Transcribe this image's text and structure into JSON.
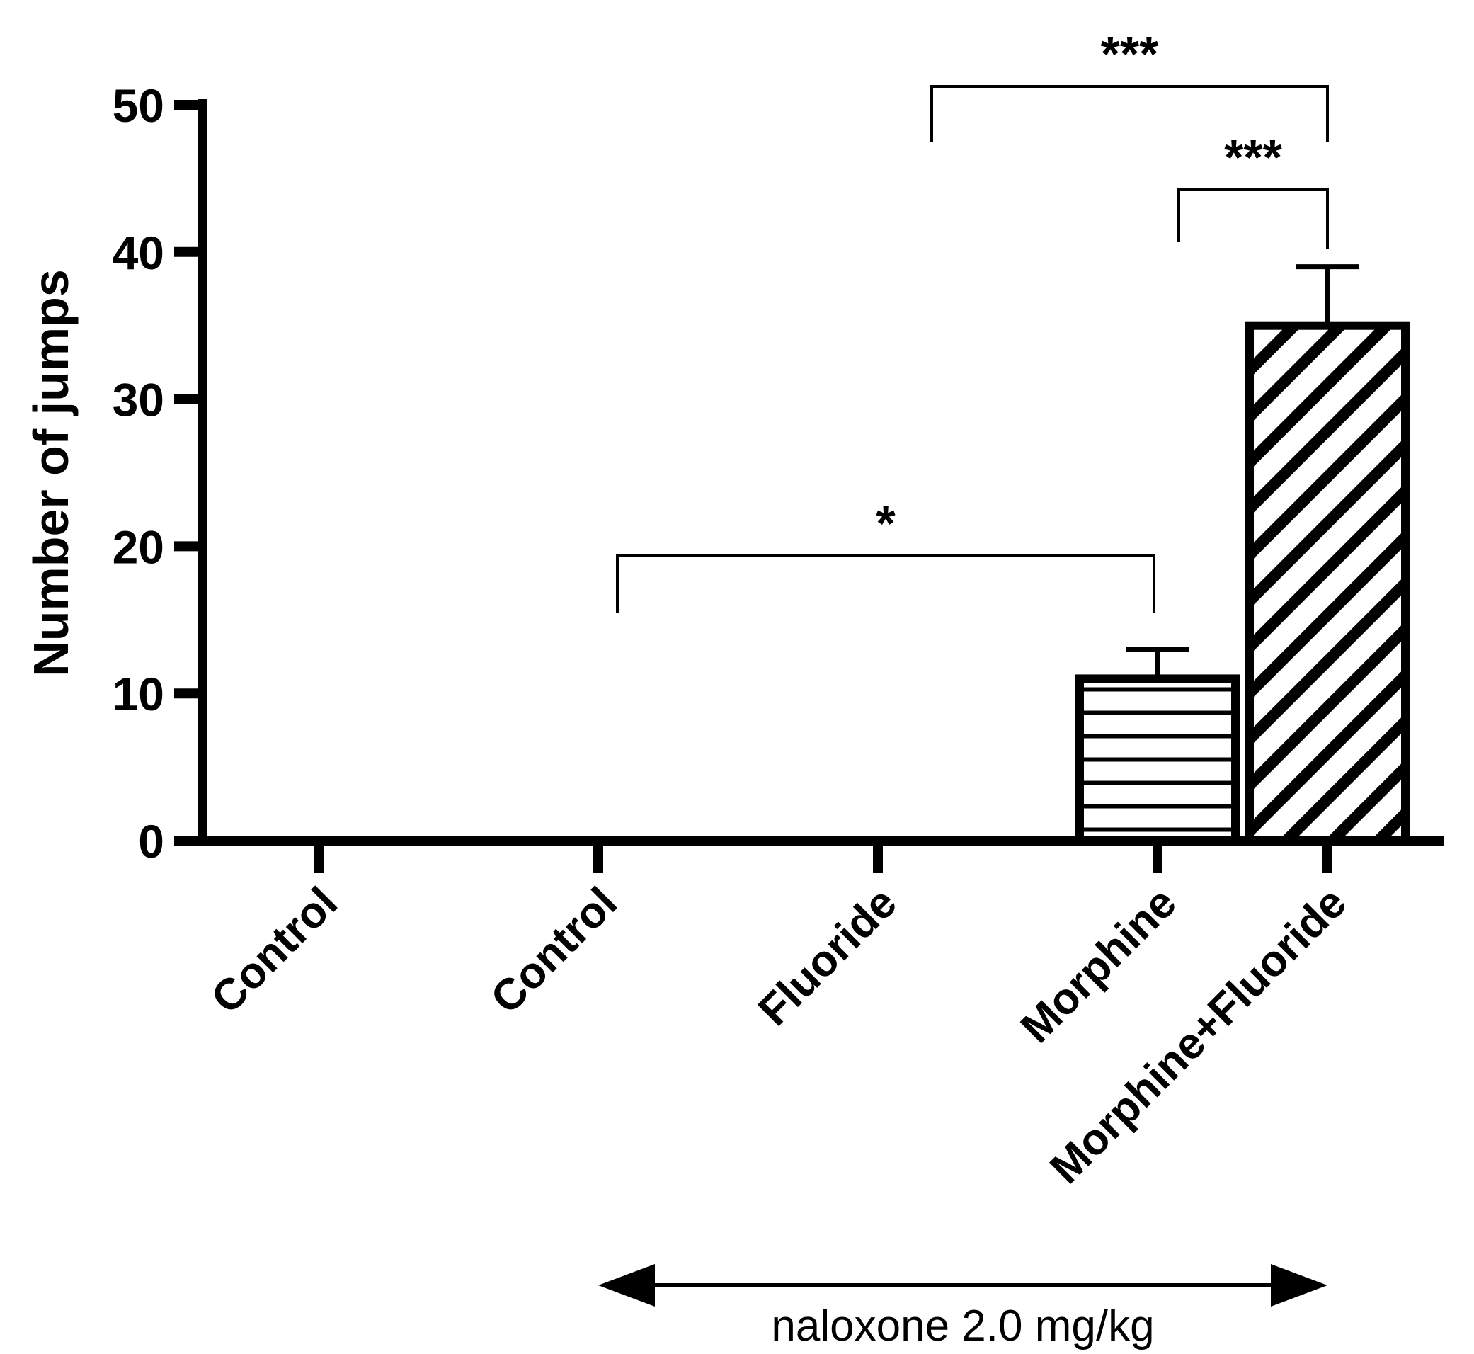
{
  "chart_data": {
    "type": "bar",
    "categories": [
      "Control",
      "Control",
      "Fluoride",
      "Morphine",
      "Morphine+Fluoride"
    ],
    "values": [
      0,
      0,
      0,
      11,
      35
    ],
    "errors": [
      0,
      0,
      0,
      2,
      4
    ],
    "fill_patterns": [
      "none",
      "none",
      "none",
      "horizontal-lines",
      "diagonal-lines"
    ],
    "title": "",
    "xlabel": "",
    "ylabel": "Number of jumps",
    "ylim": [
      0,
      50
    ],
    "yticks": [
      0,
      10,
      20,
      30,
      40,
      50
    ],
    "ytick_labels": [
      "0",
      "10",
      "20",
      "30",
      "40",
      "50"
    ],
    "grid": false,
    "significance": [
      {
        "from": 1,
        "to": 3,
        "label": "*"
      },
      {
        "from": 3,
        "to": 4,
        "label": "***"
      },
      {
        "from": 2,
        "to": 4,
        "label": "***"
      }
    ],
    "range_annotation": {
      "from": 1,
      "to": 4,
      "label": "naloxone 2.0 mg/kg"
    },
    "colors": {
      "axis": "#000000",
      "bar_fill": "#ffffff",
      "bar_stroke": "#000000",
      "background": "#ffffff"
    }
  }
}
